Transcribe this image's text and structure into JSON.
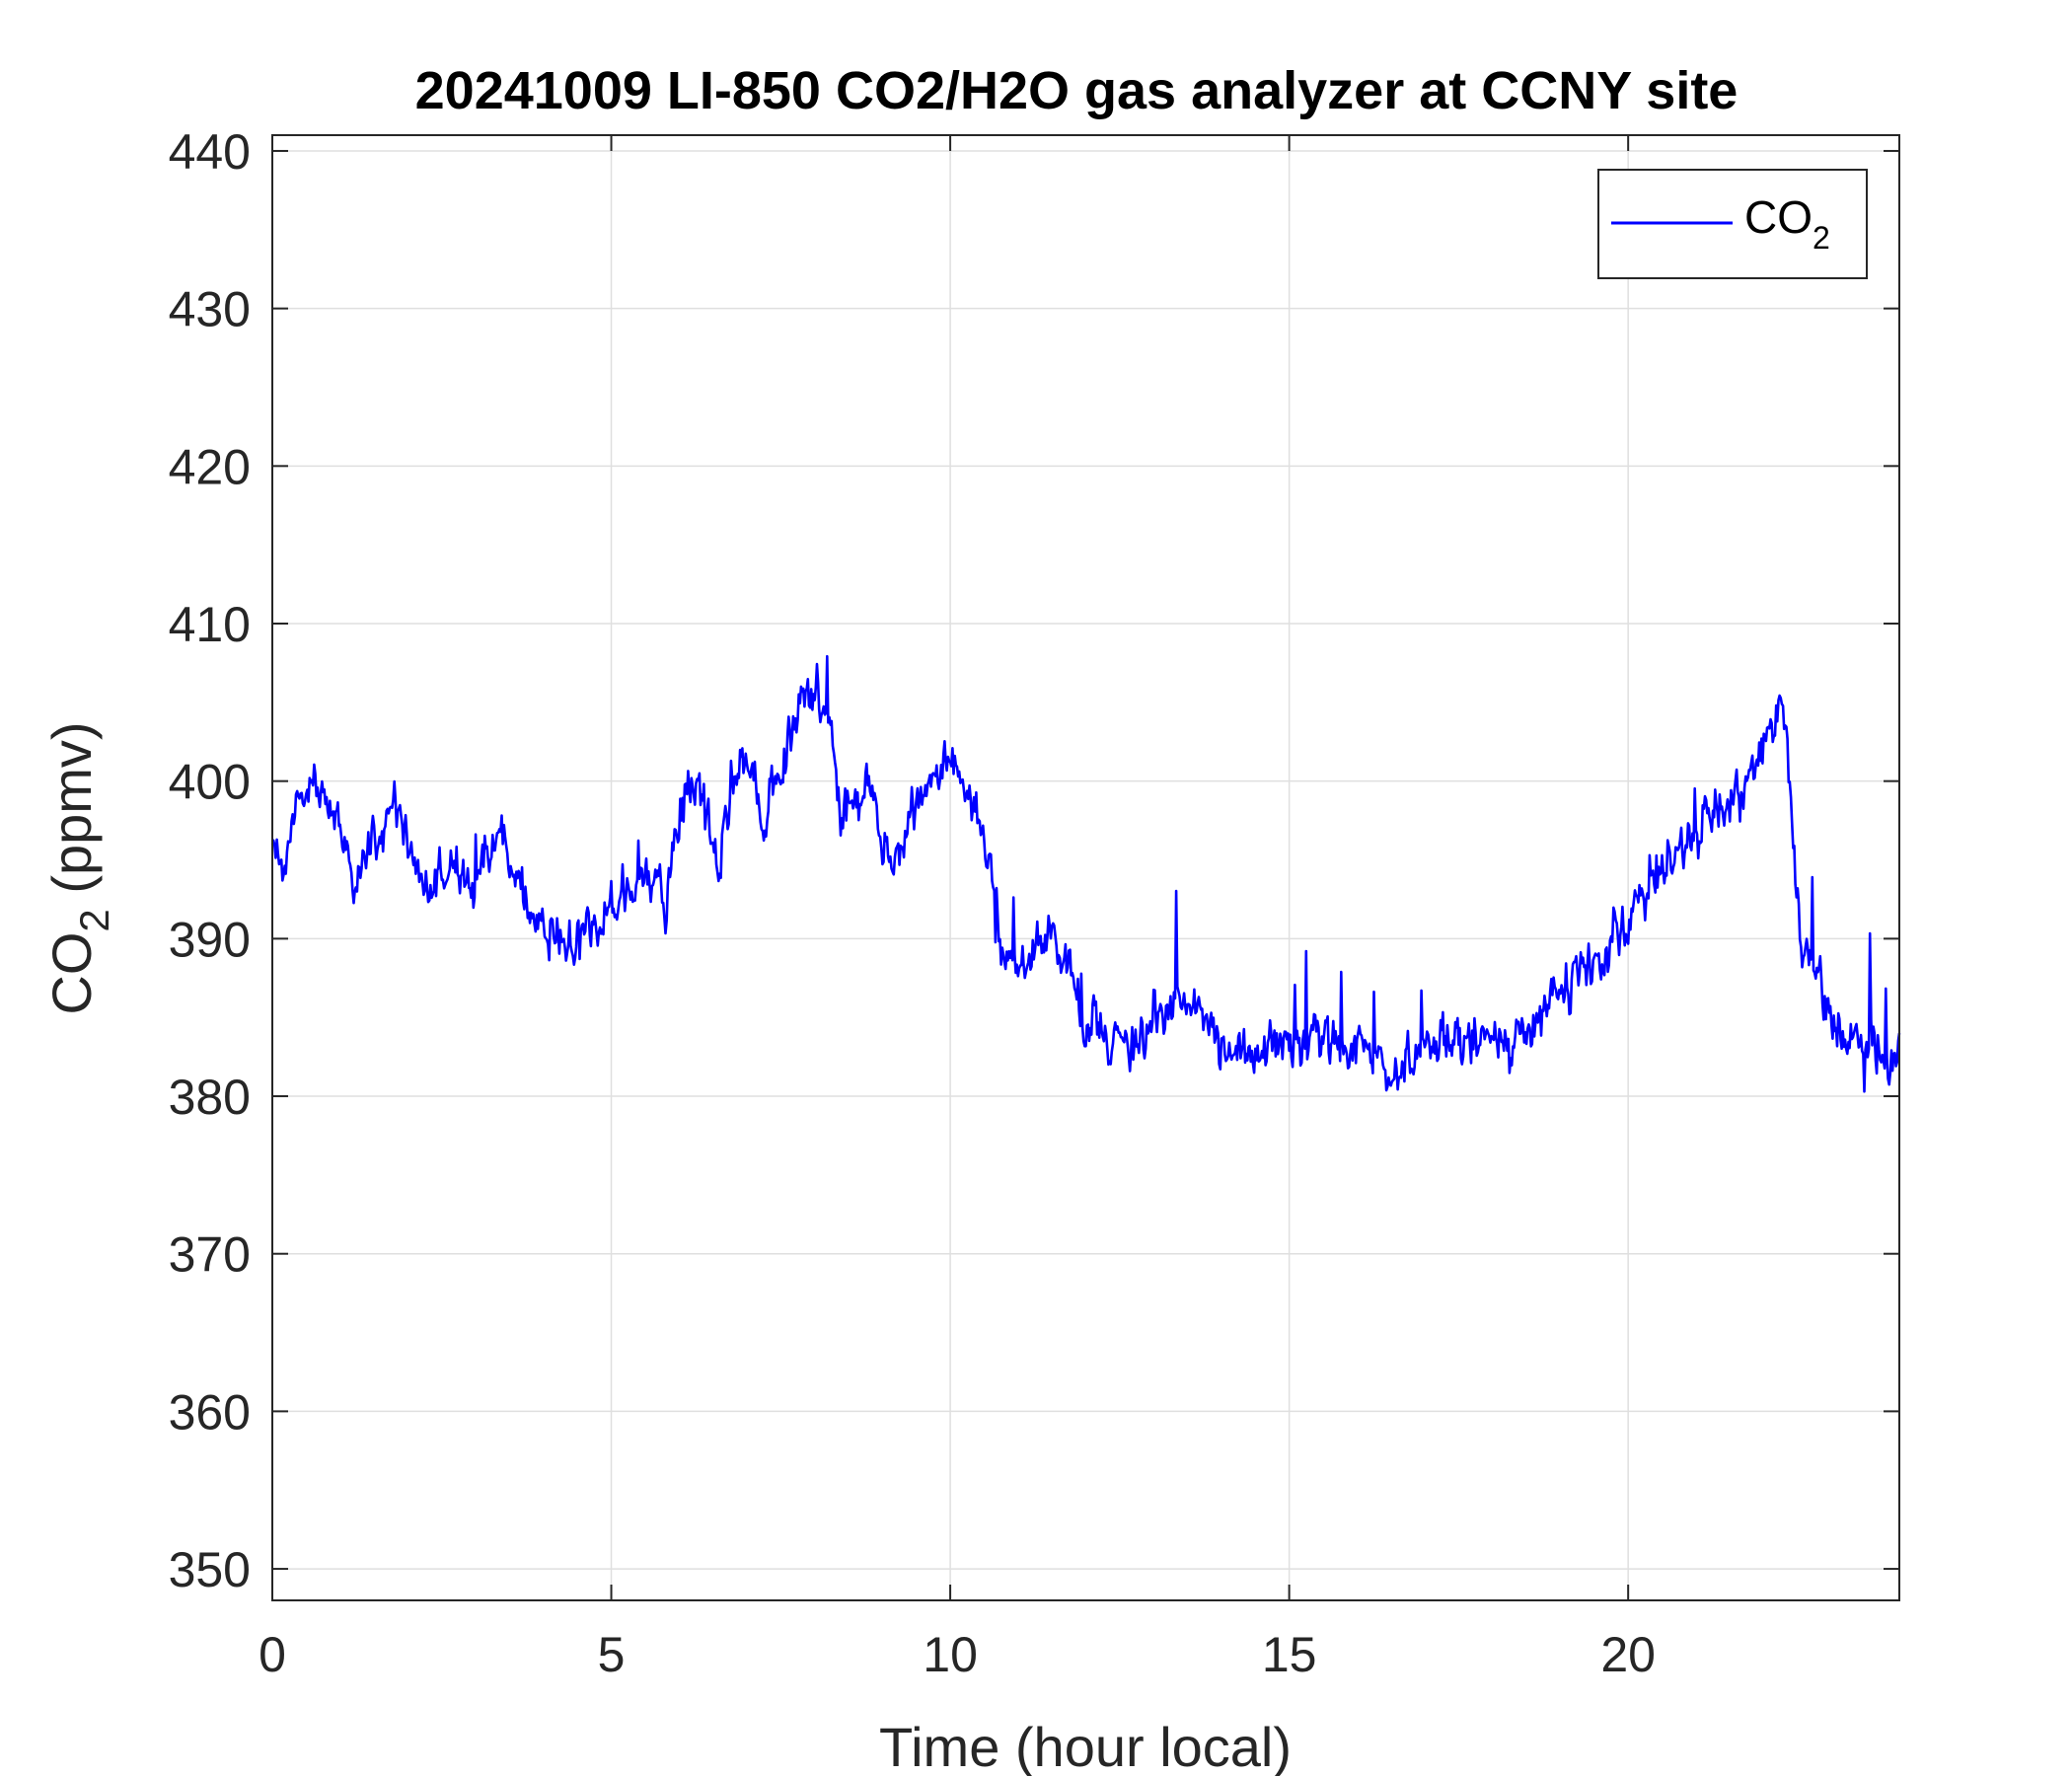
{
  "chart_data": {
    "type": "line",
    "title": "20241009 LI-850 CO2/H2O gas analyzer at CCNY site",
    "xlabel": "Time (hour local)",
    "ylabel": {
      "base": "CO",
      "sub": "2",
      "rest": " (ppmv)"
    },
    "xlim": [
      0,
      24
    ],
    "ylim": [
      348,
      441
    ],
    "xticks": [
      0,
      5,
      10,
      15,
      20
    ],
    "yticks": [
      350,
      360,
      370,
      380,
      390,
      400,
      410,
      420,
      430,
      440
    ],
    "grid": true,
    "legend": {
      "position": "top-right",
      "entries": [
        {
          "base": "CO",
          "sub": "2"
        }
      ]
    },
    "series": [
      {
        "name": "CO2",
        "color": "#0000ff",
        "sampling_minutes": 1,
        "noise_ppmv": 1.6,
        "anchors": [
          [
            0.0,
            396
          ],
          [
            0.2,
            395
          ],
          [
            0.4,
            399
          ],
          [
            0.6,
            400
          ],
          [
            0.8,
            398
          ],
          [
            1.0,
            397
          ],
          [
            1.2,
            394
          ],
          [
            1.4,
            396
          ],
          [
            1.6,
            397
          ],
          [
            1.8,
            399
          ],
          [
            2.0,
            396
          ],
          [
            2.2,
            393
          ],
          [
            2.5,
            394
          ],
          [
            3.0,
            393.5
          ],
          [
            3.2,
            395
          ],
          [
            3.4,
            396
          ],
          [
            3.6,
            394
          ],
          [
            3.8,
            391
          ],
          [
            4.1,
            390
          ],
          [
            4.5,
            390
          ],
          [
            5.0,
            392
          ],
          [
            5.3,
            394
          ],
          [
            5.6,
            394
          ],
          [
            5.8,
            392
          ],
          [
            6.0,
            398
          ],
          [
            6.2,
            400
          ],
          [
            6.4,
            398
          ],
          [
            6.6,
            395
          ],
          [
            6.8,
            400
          ],
          [
            7.0,
            402
          ],
          [
            7.2,
            398
          ],
          [
            7.4,
            400
          ],
          [
            7.6,
            402
          ],
          [
            7.8,
            405
          ],
          [
            8.0,
            406
          ],
          [
            8.2,
            405
          ],
          [
            8.4,
            397
          ],
          [
            8.6,
            399
          ],
          [
            8.8,
            400
          ],
          [
            9.0,
            395
          ],
          [
            9.2,
            395
          ],
          [
            9.5,
            398
          ],
          [
            9.8,
            400
          ],
          [
            10.0,
            401
          ],
          [
            10.2,
            400
          ],
          [
            10.4,
            398
          ],
          [
            10.6,
            394
          ],
          [
            10.8,
            389
          ],
          [
            11.0,
            388
          ],
          [
            11.2,
            389
          ],
          [
            11.5,
            390
          ],
          [
            11.8,
            388
          ],
          [
            12.0,
            385
          ],
          [
            12.3,
            384
          ],
          [
            12.6,
            383
          ],
          [
            13.0,
            385
          ],
          [
            13.4,
            386
          ],
          [
            13.8,
            385
          ],
          [
            14.1,
            383
          ],
          [
            14.5,
            383
          ],
          [
            15.0,
            383
          ],
          [
            15.5,
            383
          ],
          [
            16.0,
            383.5
          ],
          [
            16.5,
            382
          ],
          [
            17.0,
            383
          ],
          [
            17.5,
            384
          ],
          [
            18.0,
            383
          ],
          [
            18.3,
            384
          ],
          [
            18.6,
            385
          ],
          [
            19.0,
            386
          ],
          [
            19.3,
            388
          ],
          [
            19.6,
            389
          ],
          [
            20.0,
            391
          ],
          [
            20.3,
            393
          ],
          [
            20.6,
            395
          ],
          [
            21.0,
            397
          ],
          [
            21.3,
            398
          ],
          [
            21.6,
            399
          ],
          [
            21.9,
            401
          ],
          [
            22.1,
            403
          ],
          [
            22.3,
            404.5
          ],
          [
            22.45,
            397
          ],
          [
            22.55,
            390
          ],
          [
            22.8,
            388
          ],
          [
            23.0,
            385
          ],
          [
            23.3,
            384
          ],
          [
            23.6,
            383.5
          ],
          [
            23.9,
            382
          ],
          [
            24.0,
            383
          ]
        ]
      }
    ]
  }
}
